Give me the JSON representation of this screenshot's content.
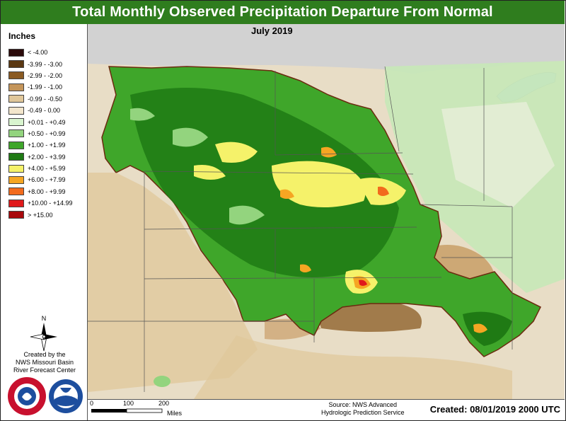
{
  "title": "Total Monthly Observed Precipitation Departure From Normal",
  "period": "July 2019",
  "legend": {
    "title": "Inches",
    "items": [
      {
        "label": "< -4.00",
        "color": "#2b0a0a"
      },
      {
        "label": "-3.99 - -3.00",
        "color": "#5a3812"
      },
      {
        "label": "-2.99 - -2.00",
        "color": "#8a5a22"
      },
      {
        "label": "-1.99 - -1.00",
        "color": "#c4955a"
      },
      {
        "label": "-0.99 - -0.50",
        "color": "#e0c79a"
      },
      {
        "label": "-0.49 - 0.00",
        "color": "#f3e6cc"
      },
      {
        "label": "+0.01 - +0.49",
        "color": "#d9f5cf"
      },
      {
        "label": "+0.50 - +0.99",
        "color": "#93d47e"
      },
      {
        "label": "+1.00 - +1.99",
        "color": "#3fa62a"
      },
      {
        "label": "+2.00 - +3.99",
        "color": "#1f7a14"
      },
      {
        "label": "+4.00 - +5.99",
        "color": "#f5f26a"
      },
      {
        "label": "+6.00 - +7.99",
        "color": "#f5a623"
      },
      {
        "label": "+8.00 - +9.99",
        "color": "#f26b1d"
      },
      {
        "label": "+10.00 - +14.99",
        "color": "#e0191b"
      },
      {
        "label": "> +15.00",
        "color": "#a8080c"
      }
    ]
  },
  "north_label": "N",
  "credit_lines": [
    "Created by the",
    "NWS Missouri Basin",
    "River Forecast Center"
  ],
  "logos": {
    "nws": "NATIONAL WEATHER SERVICE",
    "noaa": "NOAA"
  },
  "scale": {
    "ticks": [
      "0",
      "100",
      "200"
    ],
    "unit": "Miles"
  },
  "source_lines": [
    "Source: NWS Advanced",
    "Hydrologic Prediction Service"
  ],
  "created": "Created: 08/01/2019 2000 UTC"
}
